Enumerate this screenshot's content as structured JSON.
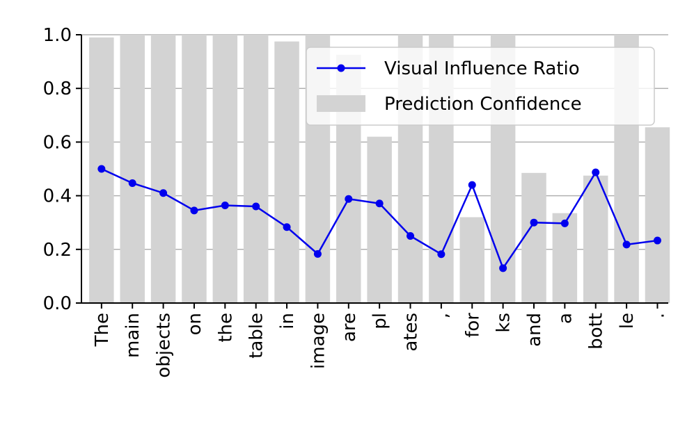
{
  "chart_data": {
    "type": "bar",
    "categories": [
      "The",
      "main",
      "objects",
      "on",
      "the",
      "table",
      "in",
      "image",
      "are",
      "pl",
      "ates",
      ",",
      "for",
      "ks",
      "and",
      "a",
      "bott",
      "le",
      "."
    ],
    "series": [
      {
        "name": "Prediction Confidence",
        "type": "bar",
        "values": [
          0.99,
          1.0,
          1.0,
          1.0,
          1.0,
          1.0,
          0.975,
          1.0,
          0.925,
          0.62,
          1.0,
          1.0,
          0.32,
          1.0,
          0.485,
          0.335,
          0.475,
          1.0,
          0.655
        ]
      },
      {
        "name": "Visual Influence Ratio",
        "type": "line",
        "values": [
          0.5,
          0.447,
          0.41,
          0.345,
          0.364,
          0.36,
          0.283,
          0.183,
          0.388,
          0.371,
          0.25,
          0.182,
          0.44,
          0.13,
          0.3,
          0.297,
          0.487,
          0.218,
          0.233
        ]
      }
    ],
    "ylim": [
      0,
      1.0
    ],
    "yticks": [
      "0.0",
      "0.2",
      "0.4",
      "0.6",
      "0.8",
      "1.0"
    ],
    "grid": "horizontal",
    "legend_placement": "top-right",
    "colors": {
      "bar": "#d3d3d3",
      "line": "#0000ee",
      "grid": "#b0b0b0",
      "axis": "#000000"
    },
    "title": "",
    "xlabel": "",
    "ylabel": ""
  }
}
